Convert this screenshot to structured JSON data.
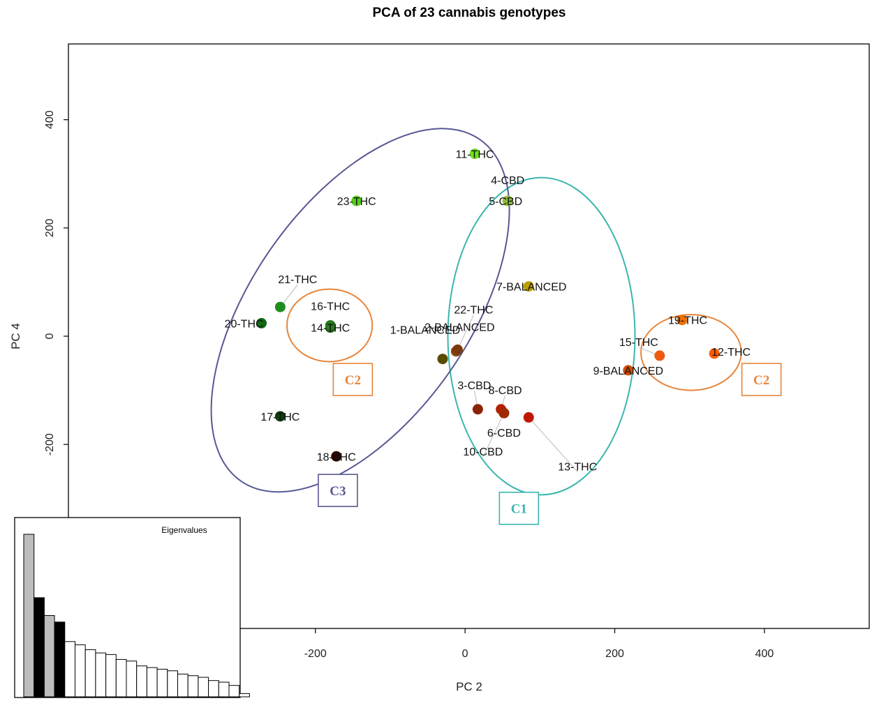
{
  "chart_data": {
    "type": "scatter",
    "title": "PCA of 23 cannabis genotypes",
    "xlabel": "PC 2",
    "ylabel": "PC 4",
    "xlim": [
      -530,
      540
    ],
    "ylim": [
      -540,
      540
    ],
    "x_ticks": [
      -200,
      0,
      200,
      400
    ],
    "y_ticks": [
      -200,
      0,
      200,
      400
    ],
    "grid": false,
    "points": [
      {
        "label": "1-BALANCED",
        "x": -30,
        "y": -42,
        "color": "#5a4a00"
      },
      {
        "label": "2-BALANCED",
        "x": -12,
        "y": -28,
        "color": "#8a4a10"
      },
      {
        "label": "3-CBD",
        "x": 17,
        "y": -135,
        "color": "#8b2300"
      },
      {
        "label": "4-CBD",
        "x": 57,
        "y": 250,
        "color": "#9acd32"
      },
      {
        "label": "5-CBD",
        "x": 57,
        "y": 250,
        "color": "#8fbc3f"
      },
      {
        "label": "6-CBD",
        "x": 52,
        "y": -142,
        "color": "#a52a00"
      },
      {
        "label": "7-BALANCED",
        "x": 85,
        "y": 92,
        "color": "#b8a000"
      },
      {
        "label": "8-CBD",
        "x": 48,
        "y": -135,
        "color": "#b22200"
      },
      {
        "label": "9-BALANCED",
        "x": 218,
        "y": -63,
        "color": "#d24a00"
      },
      {
        "label": "10-CBD",
        "x": 52,
        "y": -142,
        "color": "#9e2a00"
      },
      {
        "label": "11-THC",
        "x": 13,
        "y": 337,
        "color": "#6fe01f"
      },
      {
        "label": "12-THC",
        "x": 333,
        "y": -32,
        "color": "#ff5a00"
      },
      {
        "label": "13-THC",
        "x": 85,
        "y": -150,
        "color": "#c01800"
      },
      {
        "label": "14-THC",
        "x": -180,
        "y": 16,
        "color": "#1a5a10"
      },
      {
        "label": "15-THC",
        "x": 260,
        "y": -36,
        "color": "#ee5a10"
      },
      {
        "label": "16-THC",
        "x": -180,
        "y": 20,
        "color": "#2a7a20"
      },
      {
        "label": "17-THC",
        "x": -247,
        "y": -148,
        "color": "#0d3d0d"
      },
      {
        "label": "18-THC",
        "x": -172,
        "y": -222,
        "color": "#2b0000"
      },
      {
        "label": "19-THC",
        "x": 290,
        "y": 30,
        "color": "#e8700a"
      },
      {
        "label": "20-THC",
        "x": -272,
        "y": 24,
        "color": "#0f6a12"
      },
      {
        "label": "21-THC",
        "x": -247,
        "y": 54,
        "color": "#1f8c1f"
      },
      {
        "label": "22-THC",
        "x": -10,
        "y": -25,
        "color": "#7a3a10"
      },
      {
        "label": "23-THC",
        "x": -145,
        "y": 250,
        "color": "#55cc1a"
      }
    ],
    "clusters": [
      {
        "label": "C1",
        "color": "#3ab5ad",
        "ellipse": {
          "cx": 102,
          "cy": 0,
          "rx": 125,
          "ry": 293,
          "angle": 0
        },
        "box": {
          "x": 72,
          "y": -318
        }
      },
      {
        "label": "C2",
        "color": "#e8843a",
        "ellipse": {
          "cx": -181,
          "cy": 20,
          "rx": 57,
          "ry": 67,
          "angle": 0
        },
        "box": {
          "x": -150,
          "y": -80
        }
      },
      {
        "label": "C2",
        "color": "#e8843a",
        "ellipse": {
          "cx": 302,
          "cy": -30,
          "rx": 67,
          "ry": 70,
          "angle": 0
        },
        "box": {
          "x": 396,
          "y": -80
        }
      },
      {
        "label": "C3",
        "color": "#575894",
        "ellipse": {
          "cx": -140,
          "cy": 48,
          "rx": 145,
          "ry": 385,
          "angle": 35
        },
        "box": {
          "x": -170,
          "y": -285
        }
      }
    ],
    "inset": {
      "title": "Eigenvalues",
      "type": "bar",
      "values": [
        100,
        61,
        50,
        46,
        34,
        32,
        29,
        27,
        26,
        23,
        22,
        19,
        18,
        17,
        16,
        14,
        13,
        12,
        10,
        9,
        7,
        2
      ],
      "fills": [
        "#bdbdbd",
        "#000000",
        "#bdbdbd",
        "#000000",
        "#ffffff",
        "#ffffff",
        "#ffffff",
        "#ffffff",
        "#ffffff",
        "#ffffff",
        "#ffffff",
        "#ffffff",
        "#ffffff",
        "#ffffff",
        "#ffffff",
        "#ffffff",
        "#ffffff",
        "#ffffff",
        "#ffffff",
        "#ffffff",
        "#ffffff",
        "#ffffff"
      ]
    }
  }
}
